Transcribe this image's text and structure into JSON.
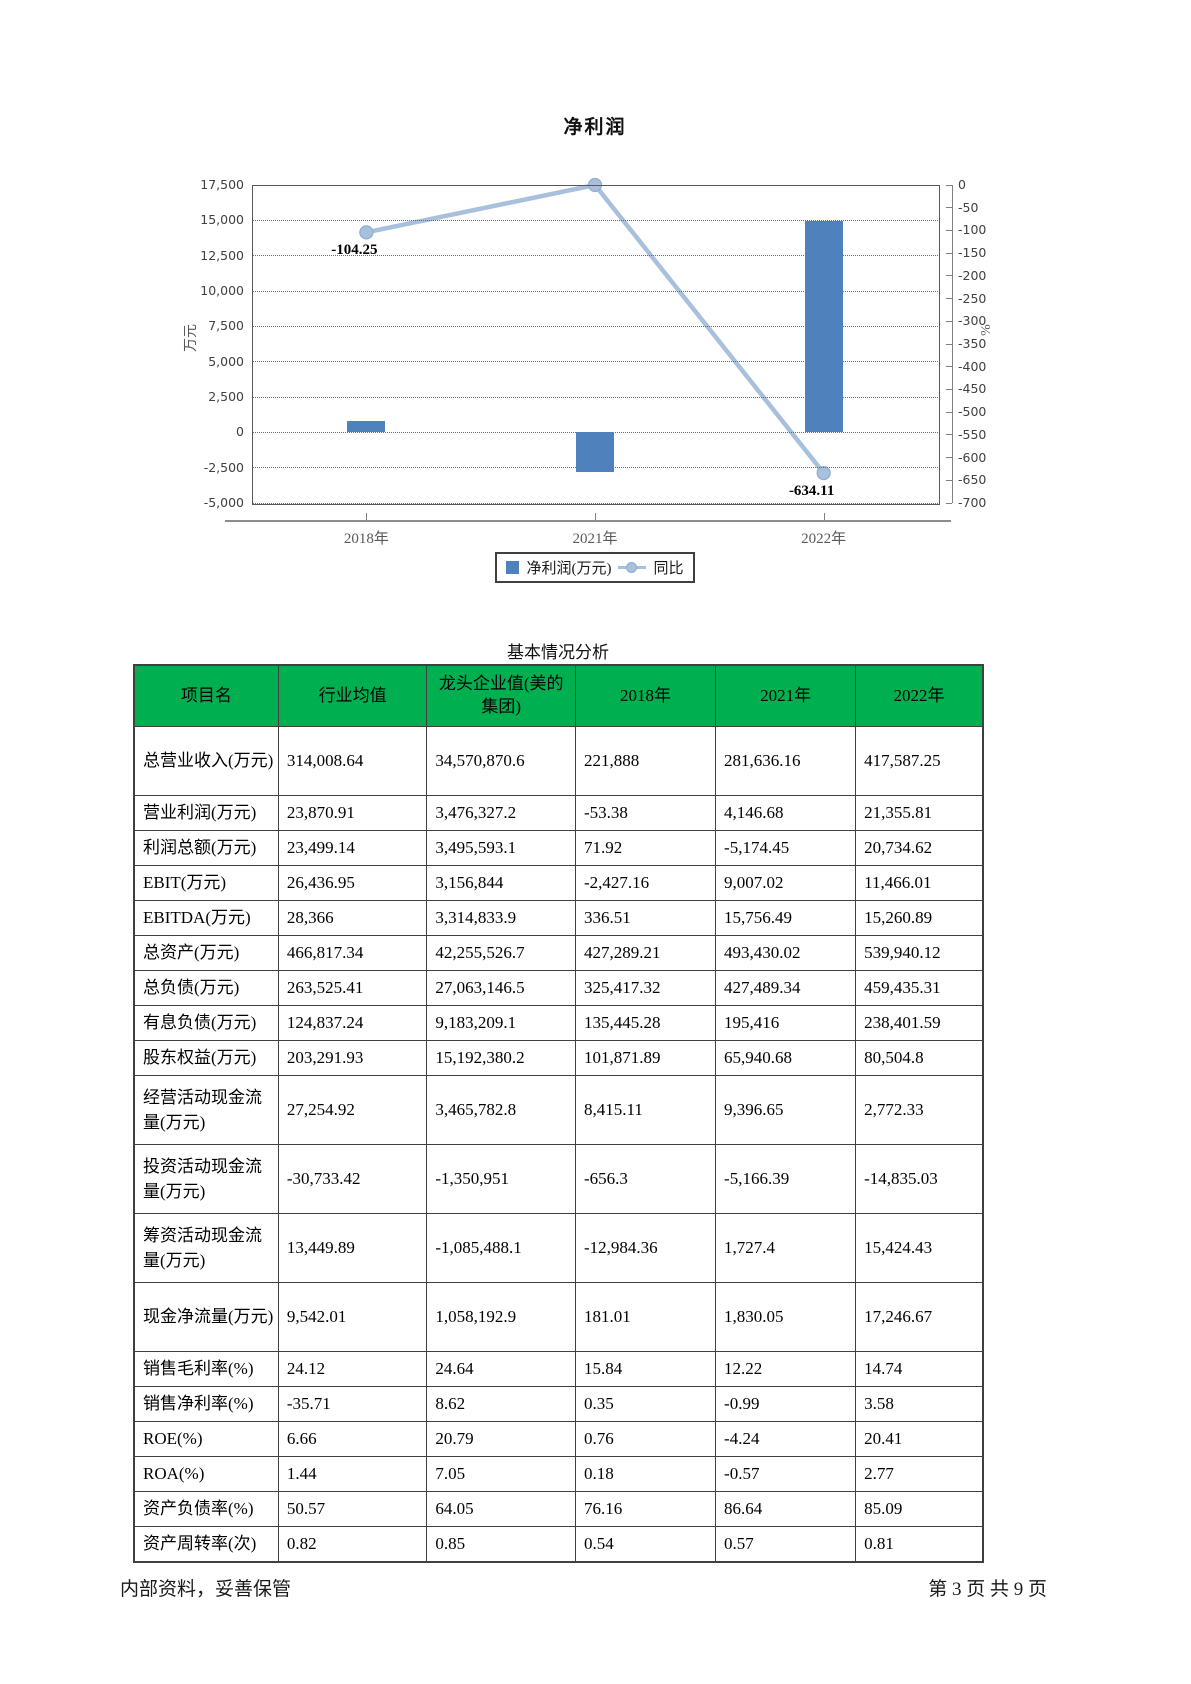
{
  "page": {
    "footer_left": "内部资料，妥善保管",
    "footer_right": "第 3 页  共 9 页"
  },
  "chart_data": {
    "type": "combo",
    "title": "净利润",
    "categories": [
      "2018年",
      "2021年",
      "2022年"
    ],
    "series": [
      {
        "name": "净利润(万元)",
        "type": "bar",
        "axis": "left",
        "values": [
          776.6,
          -2788.2,
          14949.6
        ],
        "color": "#4f81bd"
      },
      {
        "name": "同比",
        "type": "line",
        "axis": "right",
        "values": [
          -104.25,
          0,
          -634.11
        ],
        "labels": [
          "-104.25",
          null,
          "-634.11"
        ],
        "color": "#a9c0dd"
      }
    ],
    "left_axis": {
      "title": "万元",
      "min": -5000,
      "max": 17500,
      "step": 2500
    },
    "right_axis": {
      "title": "%",
      "min": -700,
      "max": 0,
      "step": 50
    },
    "grid": "horizontal dotted blue",
    "legend_position": "bottom"
  },
  "table": {
    "title": "基本情况分析",
    "columns": [
      "项目名",
      "行业均值",
      "龙头企业值(美的集团)",
      "2018年",
      "2021年",
      "2022年"
    ],
    "rows": [
      {
        "label": "总营业收入(万元)",
        "values": [
          "314,008.64",
          "34,570,870.6",
          "221,888",
          "281,636.16",
          "417,587.25"
        ]
      },
      {
        "label": "营业利润(万元)",
        "values": [
          "23,870.91",
          "3,476,327.2",
          "-53.38",
          "4,146.68",
          "21,355.81"
        ]
      },
      {
        "label": "利润总额(万元)",
        "values": [
          "23,499.14",
          "3,495,593.1",
          "71.92",
          "-5,174.45",
          "20,734.62"
        ]
      },
      {
        "label": "EBIT(万元)",
        "values": [
          "26,436.95",
          "3,156,844",
          "-2,427.16",
          "9,007.02",
          "11,466.01"
        ]
      },
      {
        "label": "EBITDA(万元)",
        "values": [
          "28,366",
          "3,314,833.9",
          "336.51",
          "15,756.49",
          "15,260.89"
        ]
      },
      {
        "label": "总资产(万元)",
        "values": [
          "466,817.34",
          "42,255,526.7",
          "427,289.21",
          "493,430.02",
          "539,940.12"
        ]
      },
      {
        "label": "总负债(万元)",
        "values": [
          "263,525.41",
          "27,063,146.5",
          "325,417.32",
          "427,489.34",
          "459,435.31"
        ]
      },
      {
        "label": "有息负债(万元)",
        "values": [
          "124,837.24",
          "9,183,209.1",
          "135,445.28",
          "195,416",
          "238,401.59"
        ]
      },
      {
        "label": "股东权益(万元)",
        "values": [
          "203,291.93",
          "15,192,380.2",
          "101,871.89",
          "65,940.68",
          "80,504.8"
        ]
      },
      {
        "label": "经营活动现金流量(万元)",
        "values": [
          "27,254.92",
          "3,465,782.8",
          "8,415.11",
          "9,396.65",
          "2,772.33"
        ]
      },
      {
        "label": "投资活动现金流量(万元)",
        "values": [
          "-30,733.42",
          "-1,350,951",
          "-656.3",
          "-5,166.39",
          "-14,835.03"
        ]
      },
      {
        "label": "筹资活动现金流量(万元)",
        "values": [
          "13,449.89",
          "-1,085,488.1",
          "-12,984.36",
          "1,727.4",
          "15,424.43"
        ]
      },
      {
        "label": "现金净流量(万元)",
        "values": [
          "9,542.01",
          "1,058,192.9",
          "181.01",
          "1,830.05",
          "17,246.67"
        ]
      },
      {
        "label": "销售毛利率(%)",
        "values": [
          "24.12",
          "24.64",
          "15.84",
          "12.22",
          "14.74"
        ]
      },
      {
        "label": "销售净利率(%)",
        "values": [
          "-35.71",
          "8.62",
          "0.35",
          "-0.99",
          "3.58"
        ]
      },
      {
        "label": "ROE(%)",
        "values": [
          "6.66",
          "20.79",
          "0.76",
          "-4.24",
          "20.41"
        ]
      },
      {
        "label": "ROA(%)",
        "values": [
          "1.44",
          "7.05",
          "0.18",
          "-0.57",
          "2.77"
        ]
      },
      {
        "label": "资产负债率(%)",
        "values": [
          "50.57",
          "64.05",
          "76.16",
          "86.64",
          "85.09"
        ]
      },
      {
        "label": "资产周转率(次)",
        "values": [
          "0.82",
          "0.85",
          "0.54",
          "0.57",
          "0.81"
        ]
      }
    ],
    "header_bg": "#00b050"
  }
}
